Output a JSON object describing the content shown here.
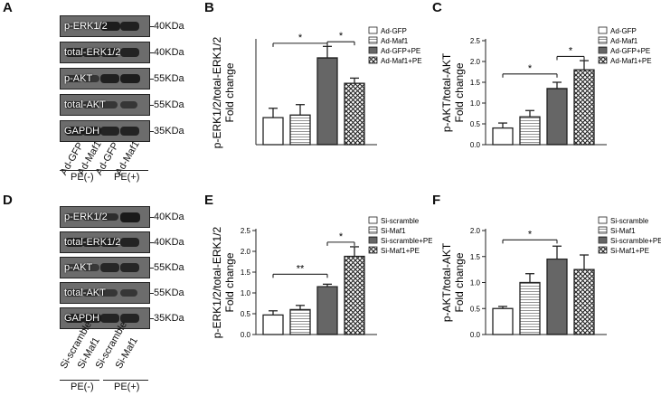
{
  "panels": {
    "A": {
      "label": "A",
      "rows": [
        {
          "name": "p-ERK1/2",
          "kda": "40KDa",
          "bands": [
            0.25,
            0.3,
            0.95,
            0.9
          ]
        },
        {
          "name": "total-ERK1/2",
          "kda": "40KDa",
          "bands": [
            0.85,
            0.85,
            0.85,
            0.85
          ]
        },
        {
          "name": "p-AKT",
          "kda": "55KDa",
          "bands": [
            0.6,
            0.55,
            0.9,
            0.95
          ]
        },
        {
          "name": "total-AKT",
          "kda": "55KDa",
          "bands": [
            0.55,
            0.55,
            0.55,
            0.55
          ]
        },
        {
          "name": "GAPDH",
          "kda": "35KDa",
          "bands": [
            0.85,
            0.85,
            0.85,
            0.85
          ]
        }
      ],
      "lanes": [
        "Ad-GFP",
        "Ad-Maf1",
        "Ad-GFP",
        "Ad-Maf1"
      ],
      "groups": [
        "PE(-)",
        "PE(+)"
      ]
    },
    "D": {
      "label": "D",
      "rows": [
        {
          "name": "p-ERK1/2",
          "kda": "40KDa",
          "bands": [
            0.45,
            0.5,
            0.7,
            1.0
          ]
        },
        {
          "name": "total-ERK1/2",
          "kda": "40KDa",
          "bands": [
            0.85,
            0.85,
            0.85,
            0.85
          ]
        },
        {
          "name": "p-AKT",
          "kda": "55KDa",
          "bands": [
            0.45,
            0.5,
            0.8,
            0.8
          ]
        },
        {
          "name": "total-AKT",
          "kda": "55KDa",
          "bands": [
            0.55,
            0.55,
            0.55,
            0.55
          ]
        },
        {
          "name": "GAPDH",
          "kda": "35KDa",
          "bands": [
            0.85,
            0.85,
            0.85,
            0.85
          ]
        }
      ],
      "lanes": [
        "Si-scramble",
        "Si-Maf1",
        "Si-scramble",
        "Si-Maf1"
      ],
      "groups": [
        "PE(-)",
        "PE(+)"
      ]
    }
  },
  "chart_data": [
    {
      "id": "B",
      "type": "bar",
      "ylabel_main": "p-ERK1/2/total-ERK1/2",
      "ylabel_sub": "Fold change",
      "ylim": [
        0,
        2.0
      ],
      "ticks": [],
      "categories": [
        "Ad-GFP",
        "Ad-Maf1",
        "Ad-GFP+PE",
        "Ad-Maf1+PE"
      ],
      "values": [
        0.52,
        0.57,
        1.67,
        1.18
      ],
      "errors": [
        0.18,
        0.2,
        0.22,
        0.1
      ],
      "fills": [
        "white",
        "hlines",
        "dense",
        "cross"
      ],
      "sig": [
        {
          "from": 0,
          "to": 2,
          "label": "*",
          "level": 1.95
        },
        {
          "from": 2,
          "to": 3,
          "label": "*",
          "level": 1.98
        }
      ]
    },
    {
      "id": "C",
      "type": "bar",
      "ylabel_main": "p-AKT/total-AKT",
      "ylabel_sub": "Fold change",
      "ylim": [
        0,
        2.5
      ],
      "ticks": [
        "0.0",
        "0.5",
        "1.0",
        "1.5",
        "2.0",
        "2.5"
      ],
      "categories": [
        "Ad-GFP",
        "Ad-Maf1",
        "Ad-GFP+PE",
        "Ad-Maf1+PE"
      ],
      "values": [
        0.4,
        0.67,
        1.35,
        1.8
      ],
      "errors": [
        0.12,
        0.15,
        0.15,
        0.22
      ],
      "fills": [
        "white",
        "hlines",
        "dense",
        "cross"
      ],
      "sig": [
        {
          "from": 0,
          "to": 2,
          "label": "*",
          "level": 1.7
        },
        {
          "from": 2,
          "to": 3,
          "label": "*",
          "level": 2.12
        }
      ]
    },
    {
      "id": "E",
      "type": "bar",
      "ylabel_main": "p-ERK1/2/total-ERK1/2",
      "ylabel_sub": "Fold change",
      "ylim": [
        0,
        2.5
      ],
      "ticks": [
        "0.0",
        "0.5",
        "1.0",
        "1.5",
        "2.0",
        "2.5"
      ],
      "categories": [
        "Si-scramble",
        "Si-Maf1",
        "Si-scramble+PE",
        "Si-Maf1+PE"
      ],
      "values": [
        0.47,
        0.6,
        1.15,
        1.88
      ],
      "errors": [
        0.1,
        0.1,
        0.06,
        0.23
      ],
      "fills": [
        "white",
        "hlines",
        "dense",
        "cross"
      ],
      "sig": [
        {
          "from": 0,
          "to": 2,
          "label": "**",
          "level": 1.45
        },
        {
          "from": 2,
          "to": 3,
          "label": "*",
          "level": 2.22
        }
      ]
    },
    {
      "id": "F",
      "type": "bar",
      "ylabel_main": "p-AKT/total-AKT",
      "ylabel_sub": "Fold change",
      "ylim": [
        0,
        2.0
      ],
      "ticks": [
        "0.0",
        "0.5",
        "1.0",
        "1.5",
        "2.0"
      ],
      "categories": [
        "Si-scramble",
        "Si-Maf1",
        "Si-scramble+PE",
        "Si-Maf1+PE"
      ],
      "values": [
        0.5,
        1.0,
        1.45,
        1.25
      ],
      "errors": [
        0.04,
        0.17,
        0.25,
        0.28
      ],
      "fills": [
        "white",
        "hlines",
        "dense",
        "cross"
      ],
      "sig": [
        {
          "from": 0,
          "to": 2,
          "label": "*",
          "level": 1.82
        }
      ]
    }
  ]
}
